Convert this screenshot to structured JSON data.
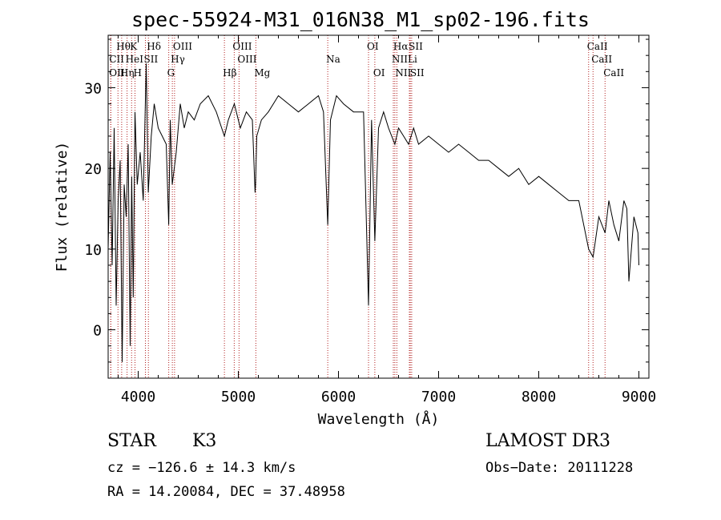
{
  "chart_data": {
    "type": "line",
    "title": "spec-55924-M31_016N38_M1_sp02-196.fits",
    "xlabel": "Wavelength (Å)",
    "ylabel": "Flux (relative)",
    "xlim": [
      3700,
      9100
    ],
    "ylim": [
      -6,
      36.5
    ],
    "xticks": [
      4000,
      5000,
      6000,
      7000,
      8000,
      9000
    ],
    "yticks": [
      0,
      10,
      20,
      30
    ],
    "series": [
      {
        "name": "flux",
        "x": [
          3700,
          3720,
          3740,
          3760,
          3780,
          3800,
          3820,
          3840,
          3860,
          3880,
          3900,
          3920,
          3935,
          3950,
          3968,
          3990,
          4020,
          4050,
          4080,
          4101,
          4130,
          4160,
          4200,
          4240,
          4280,
          4305,
          4320,
          4340,
          4380,
          4420,
          4460,
          4500,
          4560,
          4620,
          4700,
          4780,
          4861,
          4900,
          4960,
          5020,
          5080,
          5140,
          5167,
          5172,
          5184,
          5230,
          5300,
          5400,
          5500,
          5600,
          5700,
          5800,
          5850,
          5893,
          5920,
          5980,
          6050,
          6150,
          6250,
          6300,
          6330,
          6363,
          6400,
          6450,
          6500,
          6563,
          6600,
          6650,
          6700,
          6750,
          6800,
          6900,
          7000,
          7100,
          7200,
          7300,
          7400,
          7500,
          7600,
          7700,
          7800,
          7900,
          8000,
          8100,
          8200,
          8300,
          8400,
          8498,
          8542,
          8600,
          8662,
          8700,
          8750,
          8800,
          8850,
          8880,
          8900,
          8950,
          8990,
          9000
        ],
        "y": [
          10,
          22,
          8,
          25,
          3,
          16,
          21,
          -4,
          18,
          14,
          23,
          -2,
          19,
          4,
          27,
          18,
          22,
          16,
          33,
          17,
          24,
          28,
          25,
          24,
          23,
          13,
          26,
          18,
          22,
          28,
          25,
          27,
          26,
          28,
          29,
          27,
          24,
          26,
          28,
          25,
          27,
          26,
          17,
          18,
          24,
          26,
          27,
          29,
          28,
          27,
          28,
          29,
          27,
          13,
          26,
          29,
          28,
          27,
          27,
          3,
          26,
          11,
          25,
          27,
          25,
          23,
          25,
          24,
          23,
          25,
          23,
          24,
          23,
          22,
          23,
          22,
          21,
          21,
          20,
          19,
          20,
          18,
          19,
          18,
          17,
          16,
          16,
          10,
          9,
          14,
          12,
          16,
          13,
          11,
          16,
          15,
          6,
          14,
          12,
          8
        ]
      }
    ],
    "spectral_lines": [
      {
        "name": "Hθ",
        "wavelength": 3798,
        "row": 0
      },
      {
        "name": "K",
        "wavelength": 3934,
        "row": 0
      },
      {
        "name": "Hδ",
        "wavelength": 4102,
        "row": 0
      },
      {
        "name": "OIII",
        "wavelength": 4363,
        "row": 0
      },
      {
        "name": "OIII",
        "wavelength": 4959,
        "row": 0
      },
      {
        "name": "OI",
        "wavelength": 6300,
        "row": 0
      },
      {
        "name": "Hα",
        "wavelength": 6563,
        "row": 0
      },
      {
        "name": "SII",
        "wavelength": 6717,
        "row": 0
      },
      {
        "name": "CaII",
        "wavelength": 8498,
        "row": 0
      },
      {
        "name": "CII",
        "wavelength": 3727,
        "row": 1
      },
      {
        "name": "HeI",
        "wavelength": 3889,
        "row": 1
      },
      {
        "name": "SII",
        "wavelength": 4072,
        "row": 1
      },
      {
        "name": "Hγ",
        "wavelength": 4341,
        "row": 1
      },
      {
        "name": "OIII",
        "wavelength": 5007,
        "row": 1
      },
      {
        "name": "Na",
        "wavelength": 5893,
        "row": 1
      },
      {
        "name": "NII",
        "wavelength": 6548,
        "row": 1
      },
      {
        "name": "Li",
        "wavelength": 6708,
        "row": 1
      },
      {
        "name": "CaII",
        "wavelength": 8542,
        "row": 1
      },
      {
        "name": "OII",
        "wavelength": 3726,
        "row": 2
      },
      {
        "name": "Hη",
        "wavelength": 3835,
        "row": 2
      },
      {
        "name": "H",
        "wavelength": 3968,
        "row": 2
      },
      {
        "name": "G",
        "wavelength": 4305,
        "row": 2
      },
      {
        "name": "Hβ",
        "wavelength": 4861,
        "row": 2
      },
      {
        "name": "Mg",
        "wavelength": 5175,
        "row": 2
      },
      {
        "name": "OI",
        "wavelength": 6363,
        "row": 2
      },
      {
        "name": "NII",
        "wavelength": 6583,
        "row": 2
      },
      {
        "name": "SII",
        "wavelength": 6731,
        "row": 2
      },
      {
        "name": "CaII",
        "wavelength": 8662,
        "row": 2
      }
    ],
    "line_color": "#000000",
    "marker_color": "#b22222"
  },
  "info": {
    "class": "STAR",
    "subclass": "K3",
    "survey": "LAMOST DR3",
    "cz": "cz = −126.6 ± 14.3 km/s",
    "obs_date": "Obs−Date: 20111228",
    "coords": "RA =  14.20084, DEC =  37.48958"
  }
}
